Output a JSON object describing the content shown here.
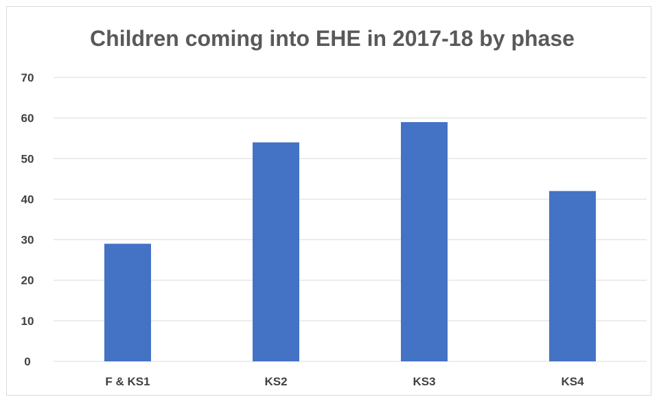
{
  "chart_data": {
    "type": "bar",
    "title": "Children coming into EHE in 2017-18 by phase",
    "categories": [
      "F & KS1",
      "KS2",
      "KS3",
      "KS4"
    ],
    "values": [
      29,
      54,
      59,
      42
    ],
    "ylim": [
      0,
      70
    ],
    "yticks": [
      "0",
      "10",
      "20",
      "30",
      "40",
      "50",
      "60",
      "70"
    ],
    "xlabel": "",
    "ylabel": "",
    "grid": true,
    "legend": "none",
    "bar_color": "#4472c4"
  }
}
